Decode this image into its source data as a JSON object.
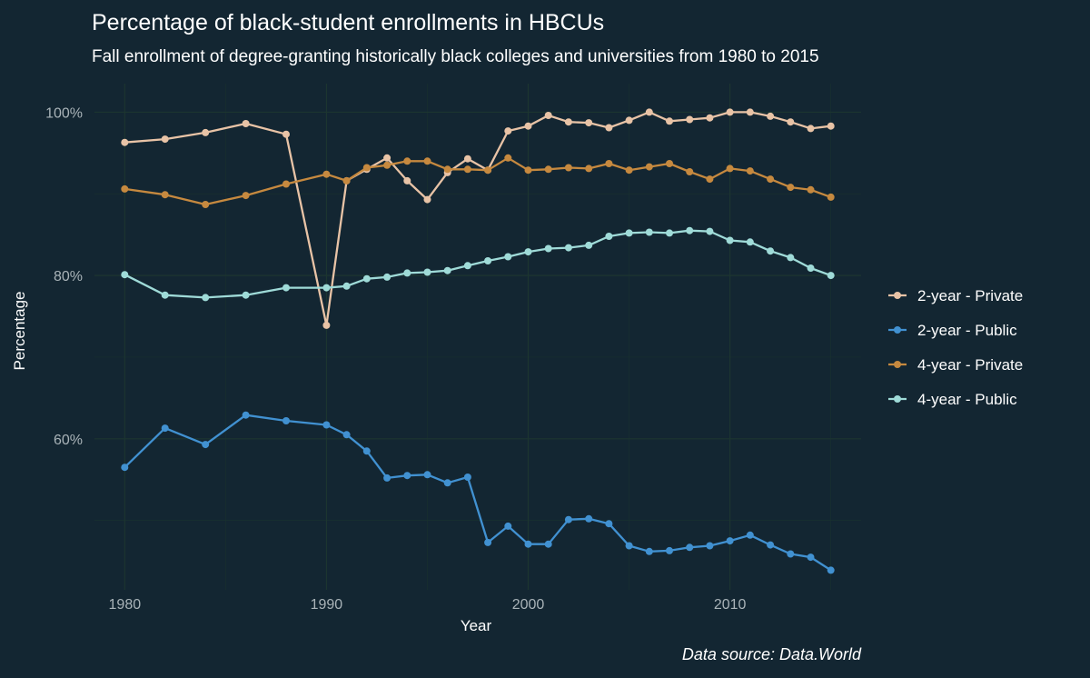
{
  "chart_data": {
    "type": "line",
    "title": "Percentage of black-student enrollments in HBCUs",
    "subtitle": "Fall enrollment of degree-granting historically black colleges and universities from 1980 to 2015",
    "xlabel": "Year",
    "ylabel": "Percentage",
    "caption": "Data source: Data.World",
    "xlim": [
      1978.5,
      2016.5
    ],
    "ylim": [
      41.5,
      103.5
    ],
    "x_ticks": [
      1980,
      1990,
      2000,
      2010
    ],
    "y_ticks": [
      60,
      80,
      100
    ],
    "y_tick_labels": [
      "60%",
      "80%",
      "100%"
    ],
    "legend_position": "right",
    "grid": true,
    "series": [
      {
        "name": "2-year - Private",
        "color": "#e8c3a6",
        "x": [
          1980,
          1982,
          1984,
          1986,
          1988,
          1990,
          1991,
          1992,
          1993,
          1994,
          1995,
          1996,
          1997,
          1998,
          1999,
          2000,
          2001,
          2002,
          2003,
          2004,
          2005,
          2006,
          2007,
          2008,
          2009,
          2010,
          2011,
          2012,
          2013,
          2014,
          2015
        ],
        "y": [
          96.3,
          96.7,
          97.5,
          98.6,
          97.3,
          73.9,
          91.6,
          93.0,
          94.4,
          91.6,
          89.3,
          92.6,
          94.3,
          92.9,
          97.7,
          98.3,
          99.6,
          98.8,
          98.7,
          98.1,
          99.0,
          100.0,
          98.9,
          99.1,
          99.3,
          100.0,
          100.0,
          99.5,
          98.8,
          98.0,
          98.3
        ]
      },
      {
        "name": "2-year - Public",
        "color": "#4191d1",
        "x": [
          1980,
          1982,
          1984,
          1986,
          1988,
          1990,
          1991,
          1992,
          1993,
          1994,
          1995,
          1996,
          1997,
          1998,
          1999,
          2000,
          2001,
          2002,
          2003,
          2004,
          2005,
          2006,
          2007,
          2008,
          2009,
          2010,
          2011,
          2012,
          2013,
          2014,
          2015
        ],
        "y": [
          56.5,
          61.3,
          59.3,
          62.9,
          62.2,
          61.7,
          60.5,
          58.5,
          55.2,
          55.5,
          55.6,
          54.6,
          55.3,
          47.3,
          49.3,
          47.1,
          47.1,
          50.1,
          50.2,
          49.6,
          46.9,
          46.2,
          46.3,
          46.7,
          46.9,
          47.5,
          48.2,
          47.0,
          45.9,
          45.5,
          43.9
        ]
      },
      {
        "name": "4-year - Private",
        "color": "#c6893f",
        "x": [
          1980,
          1982,
          1984,
          1986,
          1988,
          1990,
          1991,
          1992,
          1993,
          1994,
          1995,
          1996,
          1997,
          1998,
          1999,
          2000,
          2001,
          2002,
          2003,
          2004,
          2005,
          2006,
          2007,
          2008,
          2009,
          2010,
          2011,
          2012,
          2013,
          2014,
          2015
        ],
        "y": [
          90.6,
          89.9,
          88.7,
          89.8,
          91.2,
          92.4,
          91.6,
          93.2,
          93.5,
          94.0,
          94.0,
          93.0,
          93.0,
          92.9,
          94.4,
          92.9,
          93.0,
          93.2,
          93.1,
          93.7,
          92.9,
          93.3,
          93.7,
          92.7,
          91.8,
          93.1,
          92.8,
          91.8,
          90.8,
          90.5,
          89.6
        ]
      },
      {
        "name": "4-year - Public",
        "color": "#9fdbd8",
        "x": [
          1980,
          1982,
          1984,
          1986,
          1988,
          1990,
          1991,
          1992,
          1993,
          1994,
          1995,
          1996,
          1997,
          1998,
          1999,
          2000,
          2001,
          2002,
          2003,
          2004,
          2005,
          2006,
          2007,
          2008,
          2009,
          2010,
          2011,
          2012,
          2013,
          2014,
          2015
        ],
        "y": [
          80.1,
          77.6,
          77.3,
          77.6,
          78.5,
          78.5,
          78.7,
          79.6,
          79.8,
          80.3,
          80.4,
          80.6,
          81.2,
          81.8,
          82.3,
          82.9,
          83.3,
          83.4,
          83.7,
          84.8,
          85.2,
          85.3,
          85.2,
          85.5,
          85.4,
          84.3,
          84.1,
          83.0,
          82.2,
          80.9,
          80.0
        ]
      }
    ]
  }
}
